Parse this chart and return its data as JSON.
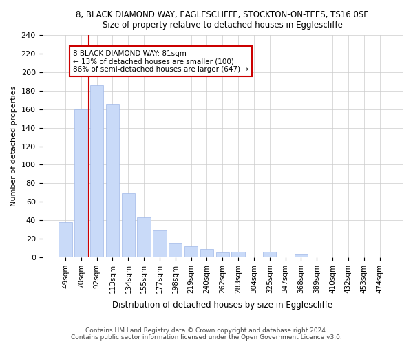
{
  "title1": "8, BLACK DIAMOND WAY, EAGLESCLIFFE, STOCKTON-ON-TEES, TS16 0SE",
  "title2": "Size of property relative to detached houses in Egglescliffe",
  "xlabel": "Distribution of detached houses by size in Egglescliffe",
  "ylabel": "Number of detached properties",
  "bar_labels": [
    "49sqm",
    "70sqm",
    "92sqm",
    "113sqm",
    "134sqm",
    "155sqm",
    "177sqm",
    "198sqm",
    "219sqm",
    "240sqm",
    "262sqm",
    "283sqm",
    "304sqm",
    "325sqm",
    "347sqm",
    "368sqm",
    "389sqm",
    "410sqm",
    "432sqm",
    "453sqm",
    "474sqm"
  ],
  "bar_values": [
    38,
    160,
    186,
    166,
    69,
    43,
    29,
    16,
    12,
    9,
    5,
    6,
    0,
    6,
    0,
    4,
    0,
    1,
    0,
    0,
    0
  ],
  "bar_color": "#c9daf8",
  "bar_edge_color": "#a0b8e8",
  "vline_color": "#cc0000",
  "annotation_line1": "8 BLACK DIAMOND WAY: 81sqm",
  "annotation_line2": "← 13% of detached houses are smaller (100)",
  "annotation_line3": "86% of semi-detached houses are larger (647) →",
  "ylim": [
    0,
    240
  ],
  "yticks": [
    0,
    20,
    40,
    60,
    80,
    100,
    120,
    140,
    160,
    180,
    200,
    220,
    240
  ],
  "footer_text": "Contains HM Land Registry data © Crown copyright and database right 2024.\nContains public sector information licensed under the Open Government Licence v3.0.",
  "bg_color": "#ffffff",
  "grid_color": "#cccccc"
}
